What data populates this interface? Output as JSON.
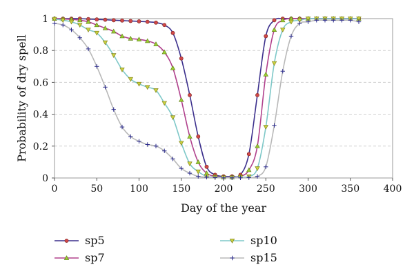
{
  "chart_data": {
    "type": "line",
    "title": "",
    "xlabel": "Day of the year",
    "ylabel": "Probability of dry spell",
    "xlim": [
      0,
      400
    ],
    "ylim": [
      0,
      1
    ],
    "xticks": [
      "0",
      "50",
      "100",
      "150",
      "200",
      "250",
      "300",
      "350",
      "400"
    ],
    "yticks": [
      "0",
      "0.2",
      "0.4",
      "0.6",
      "0.8",
      "1"
    ],
    "grid": "horizontal dashed",
    "legend_position": "bottom",
    "x": [
      0,
      10,
      20,
      30,
      40,
      50,
      60,
      70,
      80,
      90,
      100,
      110,
      120,
      130,
      140,
      150,
      160,
      170,
      180,
      190,
      200,
      210,
      220,
      230,
      240,
      250,
      260,
      270,
      280,
      290,
      300,
      310,
      320,
      330,
      340,
      350,
      360
    ],
    "series": [
      {
        "name": "sp5",
        "color": "#3b2f8c",
        "marker": "circle",
        "marker_color": "#d04848",
        "values": [
          1,
          1,
          1,
          1,
          0.997,
          0.995,
          0.993,
          0.99,
          0.988,
          0.985,
          0.983,
          0.98,
          0.975,
          0.96,
          0.91,
          0.75,
          0.52,
          0.26,
          0.07,
          0.02,
          0.01,
          0.01,
          0.02,
          0.15,
          0.52,
          0.89,
          0.99,
          1,
          1,
          1,
          1,
          1,
          1,
          1,
          1,
          1,
          1
        ]
      },
      {
        "name": "sp7",
        "color": "#b0408c",
        "marker": "triangle-up",
        "marker_color": "#9acd32",
        "values": [
          1,
          0.998,
          0.995,
          0.99,
          0.98,
          0.96,
          0.94,
          0.92,
          0.89,
          0.875,
          0.87,
          0.86,
          0.84,
          0.79,
          0.69,
          0.49,
          0.26,
          0.1,
          0.03,
          0.01,
          0.005,
          0.005,
          0.01,
          0.05,
          0.2,
          0.65,
          0.93,
          0.99,
          1,
          1,
          1,
          1,
          1,
          1,
          1,
          1,
          1
        ]
      },
      {
        "name": "sp10",
        "color": "#7ec8c8",
        "marker": "triangle-down",
        "marker_color": "#c8d040",
        "values": [
          0.997,
          0.99,
          0.98,
          0.96,
          0.93,
          0.91,
          0.85,
          0.77,
          0.68,
          0.62,
          0.59,
          0.57,
          0.55,
          0.47,
          0.38,
          0.22,
          0.09,
          0.04,
          0.01,
          0.005,
          0.003,
          0.003,
          0.005,
          0.01,
          0.06,
          0.32,
          0.72,
          0.93,
          0.98,
          0.99,
          1,
          1,
          1,
          1,
          1,
          1,
          1
        ]
      },
      {
        "name": "sp15",
        "color": "#b8b8b8",
        "marker": "plus",
        "marker_color": "#2a2a8c",
        "values": [
          0.97,
          0.96,
          0.93,
          0.88,
          0.81,
          0.7,
          0.57,
          0.43,
          0.32,
          0.26,
          0.23,
          0.21,
          0.2,
          0.17,
          0.12,
          0.06,
          0.03,
          0.01,
          0.005,
          0.002,
          0.001,
          0.001,
          0.001,
          0.002,
          0.01,
          0.07,
          0.33,
          0.67,
          0.89,
          0.97,
          0.98,
          0.99,
          0.99,
          0.99,
          0.99,
          0.99,
          0.98
        ]
      }
    ]
  }
}
